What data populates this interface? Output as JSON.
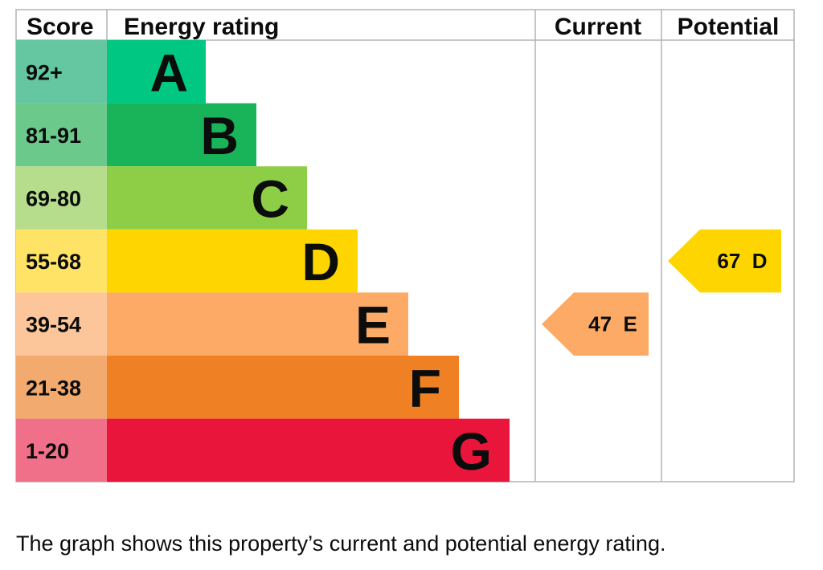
{
  "chart_data": {
    "type": "bar",
    "headers": {
      "score": "Score",
      "rating": "Energy rating",
      "current": "Current",
      "potential": "Potential"
    },
    "bands": [
      {
        "letter": "A",
        "score": "92+",
        "color": "#00c781",
        "score_color": "#64c7a2"
      },
      {
        "letter": "B",
        "score": "81-91",
        "color": "#19b459",
        "score_color": "#6cc98c"
      },
      {
        "letter": "C",
        "score": "69-80",
        "color": "#8dce46",
        "score_color": "#b6dd8b"
      },
      {
        "letter": "D",
        "score": "55-68",
        "color": "#ffd500",
        "score_color": "#ffe367"
      },
      {
        "letter": "E",
        "score": "39-54",
        "color": "#fcaa65",
        "score_color": "#fdc69a"
      },
      {
        "letter": "F",
        "score": "21-38",
        "color": "#ef8023",
        "score_color": "#f3aa6f"
      },
      {
        "letter": "G",
        "score": "1-20",
        "color": "#e9153b",
        "score_color": "#f17089"
      }
    ],
    "current": {
      "value": 47,
      "band": "E",
      "label": "47  E",
      "color": "#fcaa65"
    },
    "potential": {
      "value": 67,
      "band": "D",
      "label": "67  D",
      "color": "#ffd500"
    }
  },
  "caption": "The graph shows this property’s current and potential energy rating."
}
